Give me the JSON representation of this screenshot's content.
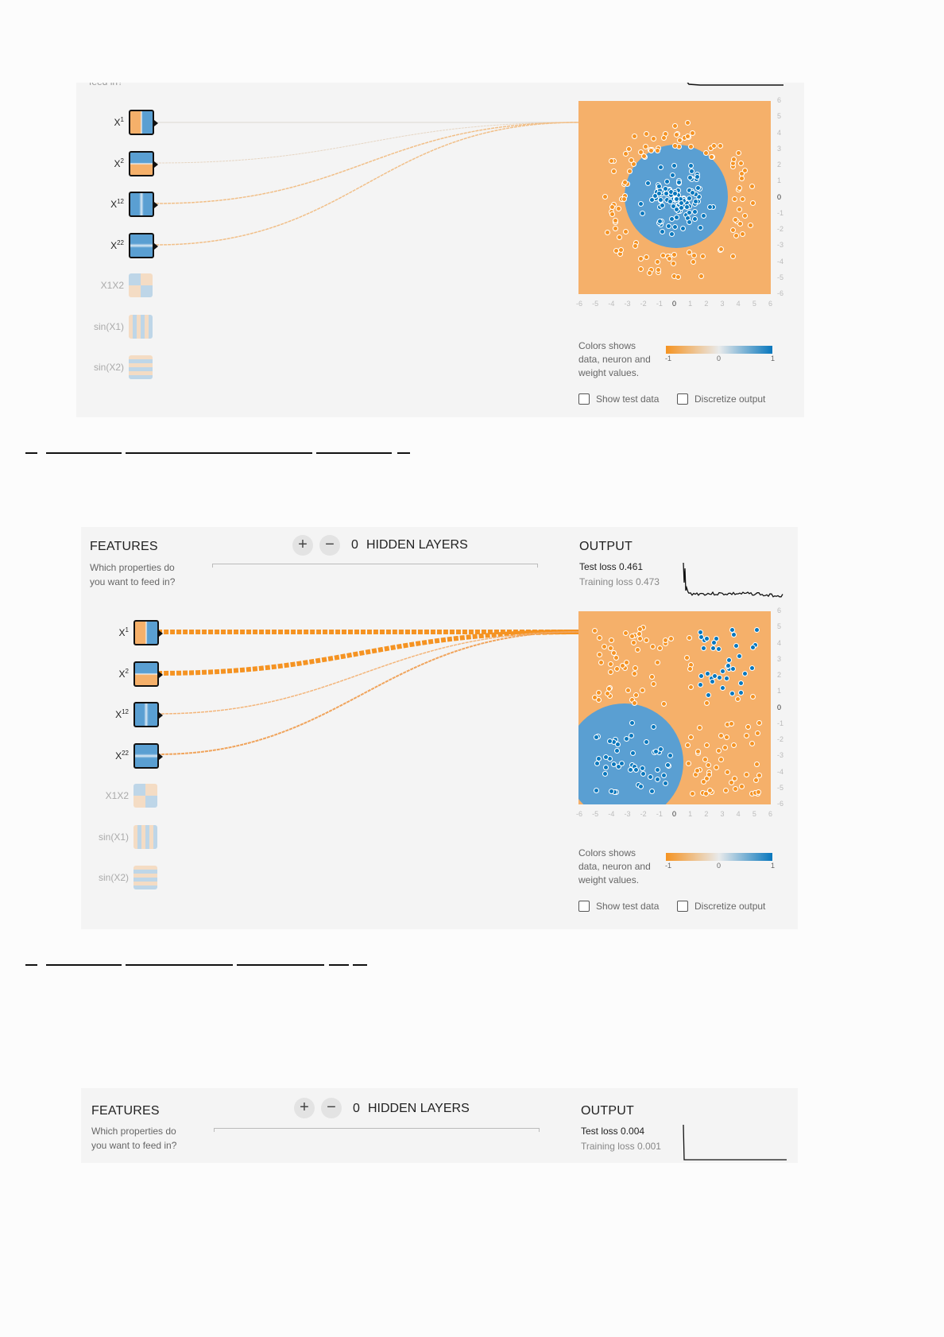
{
  "features_title": "FEATURES",
  "features_subtitle": "Which properties do you want to feed in?",
  "features_subtitle_cut": "feed in?",
  "hidden_layers_label": "HIDDEN LAYERS",
  "output_title": "OUTPUT",
  "features": [
    {
      "name": "X",
      "sup": "1",
      "active": true
    },
    {
      "name": "X",
      "sup": "2",
      "active": true
    },
    {
      "name": "X",
      "sup": "12",
      "active": true
    },
    {
      "name": "X",
      "sup": "22",
      "active": true
    },
    {
      "name": "X1X2",
      "sup": "",
      "active": false
    },
    {
      "name": "sin(X1)",
      "sup": "",
      "active": false
    },
    {
      "name": "sin(X2)",
      "sup": "",
      "active": false
    }
  ],
  "axis_ticks_x": [
    "-6",
    "-5",
    "-4",
    "-3",
    "-2",
    "-1",
    "0",
    "1",
    "2",
    "3",
    "4",
    "5",
    "6"
  ],
  "axis_ticks_y": [
    "6",
    "5",
    "4",
    "3",
    "2",
    "1",
    "0",
    "-1",
    "-2",
    "-3",
    "-4",
    "-5",
    "-6"
  ],
  "legend": {
    "text": "Colors shows data, neuron and weight values.",
    "ticks": [
      "-1",
      "0",
      "1"
    ],
    "colors": {
      "negative": "#f59322",
      "neutral": "#e8eaeb",
      "positive": "#0877bd"
    }
  },
  "checkboxes": {
    "show_test": "Show test data",
    "discretize": "Discretize output"
  },
  "panel1": {},
  "panel2": {
    "hidden_count": "0",
    "test_loss_label": "Test loss",
    "test_loss": "0.461",
    "training_loss_label": "Training loss",
    "training_loss": "0.473"
  },
  "panel3": {
    "hidden_count": "0",
    "test_loss_label": "Test loss",
    "test_loss": "0.004",
    "training_loss_label": "Training loss",
    "training_loss": "0.001"
  }
}
